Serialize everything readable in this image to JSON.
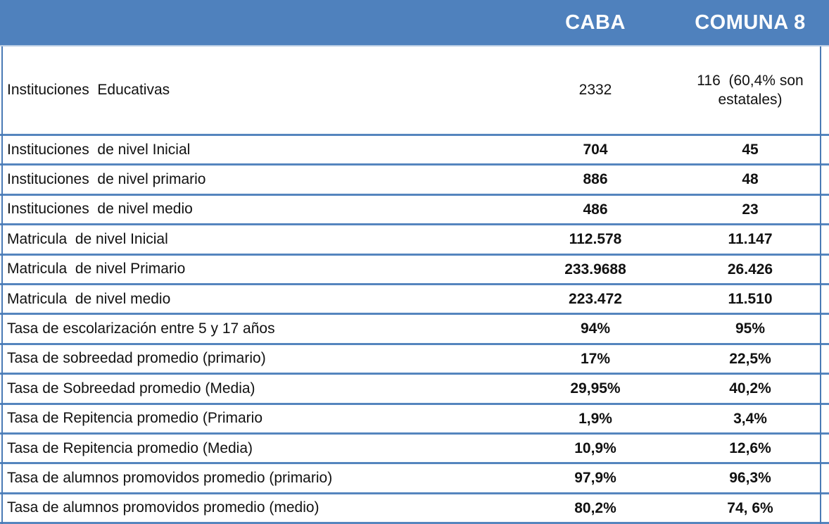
{
  "title": "Tabla comparativa de indicadores educativos CABA vs Comuna 8",
  "colors": {
    "header_bg": "#4f81bd",
    "header_text": "#ffffff",
    "row_border": "#5585be",
    "frame_line": "#4a7ab5",
    "header_underline": "#b8cce4",
    "body_text": "#111111"
  },
  "header": {
    "label": "",
    "caba": "CABA",
    "comuna": "COMUNA 8"
  },
  "rows": [
    {
      "label": "Instituciones  Educativas",
      "caba": "2332",
      "comuna": "116  (60,4% son estatales)",
      "tall": true,
      "values_bold": false
    },
    {
      "label": "Instituciones  de nivel Inicial",
      "caba": "704",
      "comuna": "45"
    },
    {
      "label": "Instituciones  de nivel primario",
      "caba": "886",
      "comuna": "48"
    },
    {
      "label": "Instituciones  de nivel medio",
      "caba": "486",
      "comuna": "23"
    },
    {
      "label": "Matricula  de nivel Inicial",
      "caba": "112.578",
      "comuna": "11.147"
    },
    {
      "label": "Matricula  de nivel Primario",
      "caba": "233.9688",
      "comuna": "26.426"
    },
    {
      "label": "Matricula  de nivel medio",
      "caba": "223.472",
      "comuna": "11.510"
    },
    {
      "label": "Tasa de escolarización entre 5 y 17 años",
      "caba": "94%",
      "comuna": "95%"
    },
    {
      "label": "Tasa de sobreedad promedio (primario)",
      "caba": "17%",
      "comuna": "22,5%"
    },
    {
      "label": "Tasa de Sobreedad promedio (Media)",
      "caba": "29,95%",
      "comuna": "40,2%"
    },
    {
      "label": "Tasa de Repitencia promedio (Primario",
      "caba": "1,9%",
      "comuna": "3,4%"
    },
    {
      "label": "Tasa de Repitencia promedio (Media)",
      "caba": "10,9%",
      "comuna": "12,6%"
    },
    {
      "label": "Tasa de alumnos promovidos promedio (primario)",
      "caba": "97,9%",
      "comuna": "96,3%"
    },
    {
      "label": "Tasa de alumnos promovidos promedio (medio)",
      "caba": "80,2%",
      "comuna": "74, 6%"
    }
  ]
}
